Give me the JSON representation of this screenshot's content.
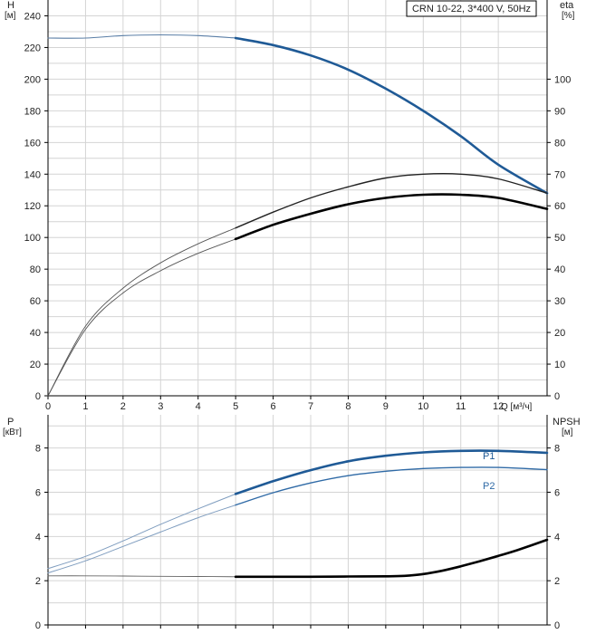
{
  "chart_data": [
    {
      "type": "line",
      "title": "CRN 10-22, 3*400 V, 50Hz",
      "xlabel": "Q [м³/ч]",
      "x_ticks": [
        0,
        1,
        2,
        3,
        4,
        5,
        6,
        7,
        8,
        9,
        10,
        11,
        12
      ],
      "xlim": [
        0,
        13.3
      ],
      "y_left": {
        "label_top": "H",
        "label_unit": "[м]",
        "lim": [
          0,
          250
        ],
        "ticks": [
          0,
          20,
          40,
          60,
          80,
          100,
          120,
          140,
          160,
          180,
          200,
          220,
          240
        ]
      },
      "y_right": {
        "label_top": "eta",
        "label_unit": "[%]",
        "lim": [
          0,
          125
        ],
        "ticks": [
          0,
          10,
          20,
          30,
          40,
          50,
          60,
          70,
          80,
          90,
          100
        ]
      },
      "grid": true,
      "series": [
        {
          "role": "H thin",
          "axis": "left",
          "color": "#5a7ea6",
          "width": 1.1,
          "x": [
            0,
            1,
            2,
            3,
            4,
            5
          ],
          "y": [
            226,
            226,
            227.5,
            228,
            227.5,
            226
          ]
        },
        {
          "role": "H bold",
          "axis": "left",
          "color": "#1f5a96",
          "width": 2.6,
          "x": [
            5,
            6,
            7,
            8,
            9,
            10,
            11,
            12,
            13.3
          ],
          "y": [
            226,
            221.5,
            215,
            206,
            194,
            180,
            164,
            146,
            128
          ]
        },
        {
          "role": "eta thin 1",
          "axis": "right",
          "color": "#555",
          "width": 0.9,
          "x": [
            0,
            1,
            2,
            3,
            4,
            5
          ],
          "y": [
            0,
            22,
            34,
            42,
            48,
            53
          ]
        },
        {
          "role": "eta thin 2",
          "axis": "right",
          "color": "#555",
          "width": 0.9,
          "x": [
            0,
            1,
            2,
            3,
            4,
            5
          ],
          "y": [
            0,
            21,
            32.5,
            39.5,
            45,
            49.5
          ]
        },
        {
          "role": "eta 1",
          "axis": "right",
          "color": "#222",
          "width": 1.4,
          "x": [
            5,
            6,
            7,
            8,
            9,
            10,
            11,
            12,
            13.3
          ],
          "y": [
            53,
            58,
            62.5,
            66,
            68.8,
            70,
            70,
            68.5,
            64
          ]
        },
        {
          "role": "eta 2",
          "axis": "right",
          "color": "#000",
          "width": 2.6,
          "x": [
            5,
            6,
            7,
            8,
            9,
            10,
            11,
            12,
            13.3
          ],
          "y": [
            49.5,
            54,
            57.5,
            60.5,
            62.5,
            63.5,
            63.5,
            62.5,
            59
          ]
        }
      ]
    },
    {
      "type": "line",
      "y_left": {
        "label_top": "P",
        "label_unit": "[кВт]",
        "lim": [
          0,
          9.5
        ],
        "ticks": [
          0,
          2,
          4,
          6,
          8
        ]
      },
      "y_right": {
        "label_top": "NPSH",
        "label_unit": "[м]",
        "lim": [
          0,
          9.5
        ],
        "ticks": [
          0,
          2,
          4,
          6,
          8
        ]
      },
      "xlim": [
        0,
        13.3
      ],
      "x_ticks": [
        0,
        1,
        2,
        3,
        4,
        5,
        6,
        7,
        8,
        9,
        10,
        11,
        12
      ],
      "grid": true,
      "series": [
        {
          "role": "P1 thin",
          "axis": "left",
          "color": "#7f9dbf",
          "width": 1.0,
          "x": [
            0,
            1,
            2,
            3,
            4,
            5
          ],
          "y": [
            2.55,
            3.1,
            3.8,
            4.55,
            5.25,
            5.92
          ]
        },
        {
          "role": "P2 thin",
          "axis": "left",
          "color": "#7f9dbf",
          "width": 1.0,
          "x": [
            0,
            1,
            2,
            3,
            4,
            5
          ],
          "y": [
            2.35,
            2.9,
            3.55,
            4.2,
            4.85,
            5.42
          ]
        },
        {
          "name": "P1",
          "axis": "left",
          "color": "#1f5a96",
          "width": 2.6,
          "x": [
            5,
            6,
            7,
            8,
            9,
            10,
            11,
            12,
            13.3
          ],
          "y": [
            5.92,
            6.5,
            7.0,
            7.4,
            7.65,
            7.8,
            7.87,
            7.87,
            7.78
          ]
        },
        {
          "name": "P2",
          "axis": "left",
          "color": "#2f6aa6",
          "width": 1.4,
          "x": [
            5,
            6,
            7,
            8,
            9,
            10,
            11,
            12,
            13.3
          ],
          "y": [
            5.42,
            5.98,
            6.42,
            6.75,
            6.95,
            7.07,
            7.12,
            7.12,
            7.02
          ]
        },
        {
          "role": "NPSH thin",
          "axis": "right",
          "color": "#666",
          "width": 0.9,
          "x": [
            0,
            1,
            2,
            3,
            4,
            5
          ],
          "y": [
            2.22,
            2.22,
            2.21,
            2.2,
            2.19,
            2.18
          ]
        },
        {
          "role": "NPSH",
          "axis": "right",
          "color": "#000",
          "width": 2.6,
          "x": [
            5,
            6,
            7,
            8,
            9,
            9.5,
            10,
            10.5,
            11,
            11.5,
            12,
            12.5,
            13.3
          ],
          "y": [
            2.18,
            2.18,
            2.18,
            2.19,
            2.2,
            2.22,
            2.3,
            2.45,
            2.65,
            2.88,
            3.12,
            3.38,
            3.85
          ]
        }
      ]
    }
  ]
}
